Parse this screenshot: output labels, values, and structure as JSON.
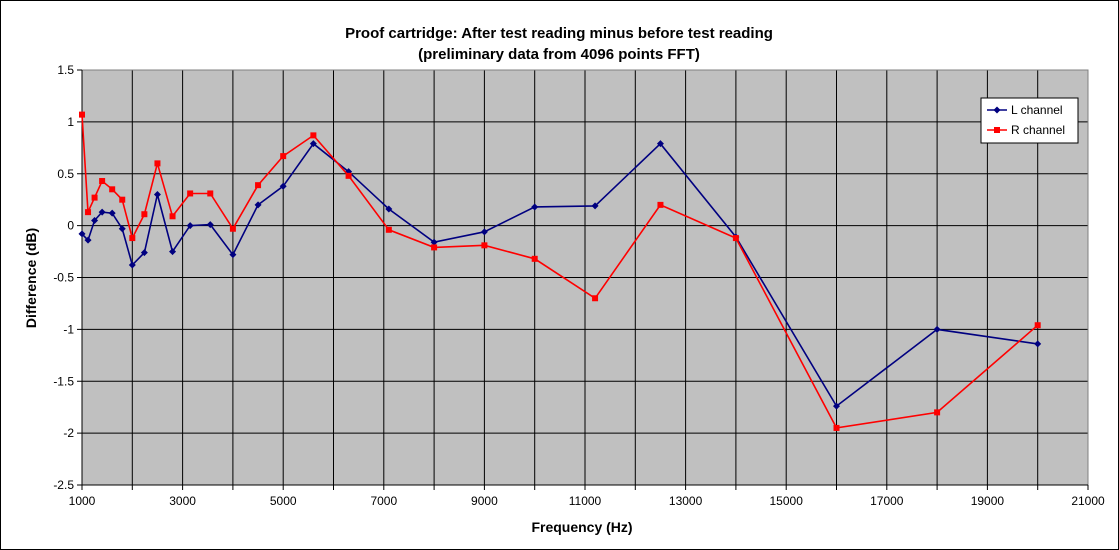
{
  "chart_data": {
    "type": "line",
    "title": "Proof cartridge: After test reading minus before test reading",
    "subtitle": "(preliminary data from 4096 points FFT)",
    "xlabel": "Frequency (Hz)",
    "ylabel": "Difference (dB)",
    "xlim": [
      1000,
      21000
    ],
    "ylim": [
      -2.5,
      1.5
    ],
    "x_ticks": [
      "1000",
      "3000",
      "5000",
      "7000",
      "9000",
      "11000",
      "13000",
      "15000",
      "17000",
      "19000",
      "21000"
    ],
    "y_ticks": [
      "1.5",
      "1",
      "0.5",
      "0",
      "-0.5",
      "-1",
      "-1.5",
      "-2",
      "-2.5"
    ],
    "x_tick_values": [
      1000,
      3000,
      5000,
      7000,
      9000,
      11000,
      13000,
      15000,
      17000,
      19000,
      21000
    ],
    "y_tick_values": [
      1.5,
      1,
      0.5,
      0,
      -0.5,
      -1,
      -1.5,
      -2,
      -2.5
    ],
    "grid": true,
    "legend_position": "top-right",
    "plot_background": "#c0c0c0",
    "series": [
      {
        "name": "L channel",
        "color": "#000080",
        "marker": "diamond",
        "x": [
          1000,
          1120,
          1250,
          1400,
          1600,
          1800,
          2000,
          2240,
          2500,
          2800,
          3150,
          3550,
          4000,
          4500,
          5000,
          5600,
          6300,
          7100,
          8000,
          9000,
          10000,
          11200,
          12500,
          14000,
          16000,
          18000,
          20000
        ],
        "y": [
          -0.08,
          -0.14,
          0.05,
          0.13,
          0.12,
          -0.03,
          -0.38,
          -0.26,
          0.3,
          -0.25,
          0.0,
          0.01,
          -0.28,
          0.2,
          0.38,
          0.79,
          0.52,
          0.16,
          -0.16,
          -0.06,
          0.18,
          0.19,
          0.79,
          -0.11,
          -1.74,
          -1.0,
          -1.14
        ]
      },
      {
        "name": "R channel",
        "color": "#ff0000",
        "marker": "square",
        "x": [
          1000,
          1120,
          1250,
          1400,
          1600,
          1800,
          2000,
          2240,
          2500,
          2800,
          3150,
          3550,
          4000,
          4500,
          5000,
          5600,
          6300,
          7100,
          8000,
          9000,
          10000,
          11200,
          12500,
          14000,
          16000,
          18000,
          20000
        ],
        "y": [
          1.07,
          0.13,
          0.27,
          0.43,
          0.35,
          0.25,
          -0.12,
          0.11,
          0.6,
          0.09,
          0.31,
          0.31,
          -0.03,
          0.39,
          0.67,
          0.87,
          0.48,
          -0.04,
          -0.21,
          -0.19,
          -0.32,
          -0.7,
          0.2,
          -0.12,
          -1.95,
          -1.8,
          -0.96
        ]
      }
    ]
  }
}
